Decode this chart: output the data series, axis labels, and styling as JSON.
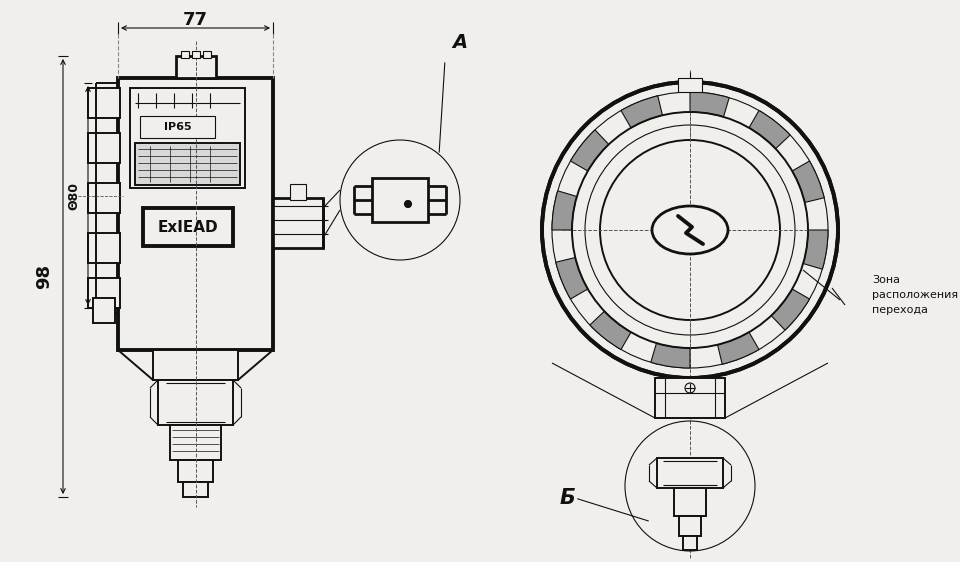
{
  "bg_color": "#f0efeb",
  "line_color": "#111111",
  "label_A": "A",
  "label_B": "Б",
  "dim_77": "77",
  "dim_98": "98",
  "dim_80": "Θ80",
  "zone_text": "Зона\nрасположения\nперехода",
  "ip65_text": "IP65",
  "ex_text": "ExIEAD",
  "fig_width": 9.6,
  "fig_height": 5.62
}
